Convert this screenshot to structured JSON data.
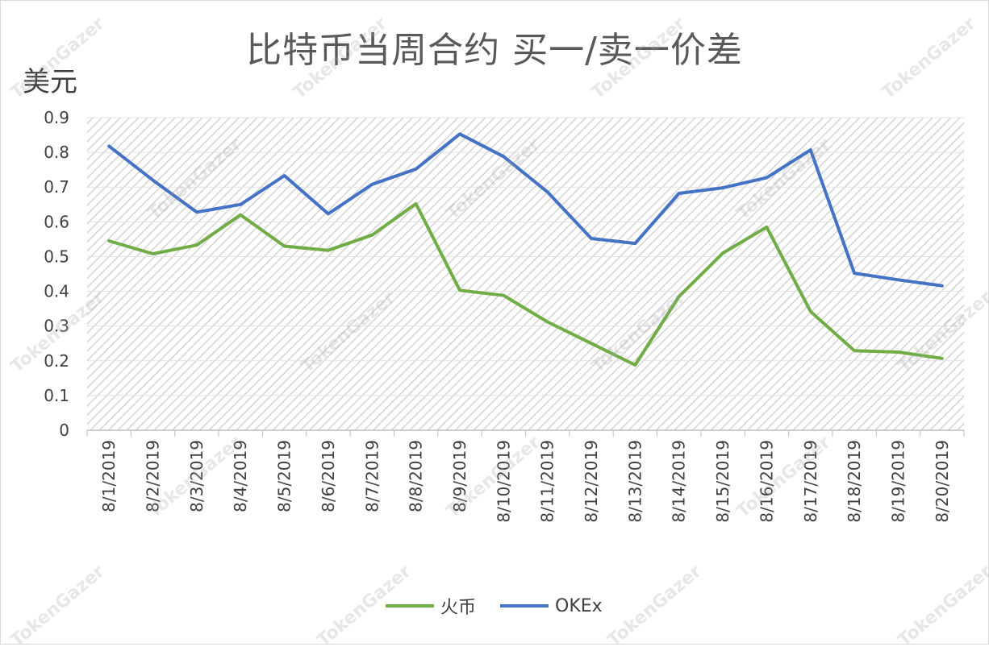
{
  "chart_data": {
    "type": "line",
    "title": "比特币当周合约 买一/卖一价差",
    "ylabel": "美元",
    "xlabel": "",
    "ylim": [
      0,
      0.9
    ],
    "yticks": [
      "0",
      "0.1",
      "0.2",
      "0.3",
      "0.4",
      "0.5",
      "0.6",
      "0.7",
      "0.8",
      "0.9"
    ],
    "categories": [
      "8/1/2019",
      "8/2/2019",
      "8/3/2019",
      "8/4/2019",
      "8/5/2019",
      "8/6/2019",
      "8/7/2019",
      "8/8/2019",
      "8/9/2019",
      "8/10/2019",
      "8/11/2019",
      "8/12/2019",
      "8/13/2019",
      "8/14/2019",
      "8/15/2019",
      "8/16/2019",
      "8/17/2019",
      "8/18/2019",
      "8/19/2019",
      "8/20/2019"
    ],
    "series": [
      {
        "name": "火币",
        "color": "#70ad47",
        "values": [
          0.545,
          0.508,
          0.533,
          0.62,
          0.53,
          0.518,
          0.562,
          0.652,
          0.403,
          0.388,
          0.312,
          0.25,
          0.188,
          0.385,
          0.51,
          0.585,
          0.342,
          0.229,
          0.225,
          0.207
        ]
      },
      {
        "name": "OKEx",
        "color": "#4472c4",
        "values": [
          0.818,
          0.72,
          0.628,
          0.65,
          0.733,
          0.623,
          0.708,
          0.752,
          0.853,
          0.788,
          0.686,
          0.552,
          0.538,
          0.682,
          0.698,
          0.727,
          0.807,
          0.452,
          0.433,
          0.416
        ]
      }
    ],
    "grid": true,
    "legend": "bottom"
  },
  "watermark": "TokenGazer"
}
